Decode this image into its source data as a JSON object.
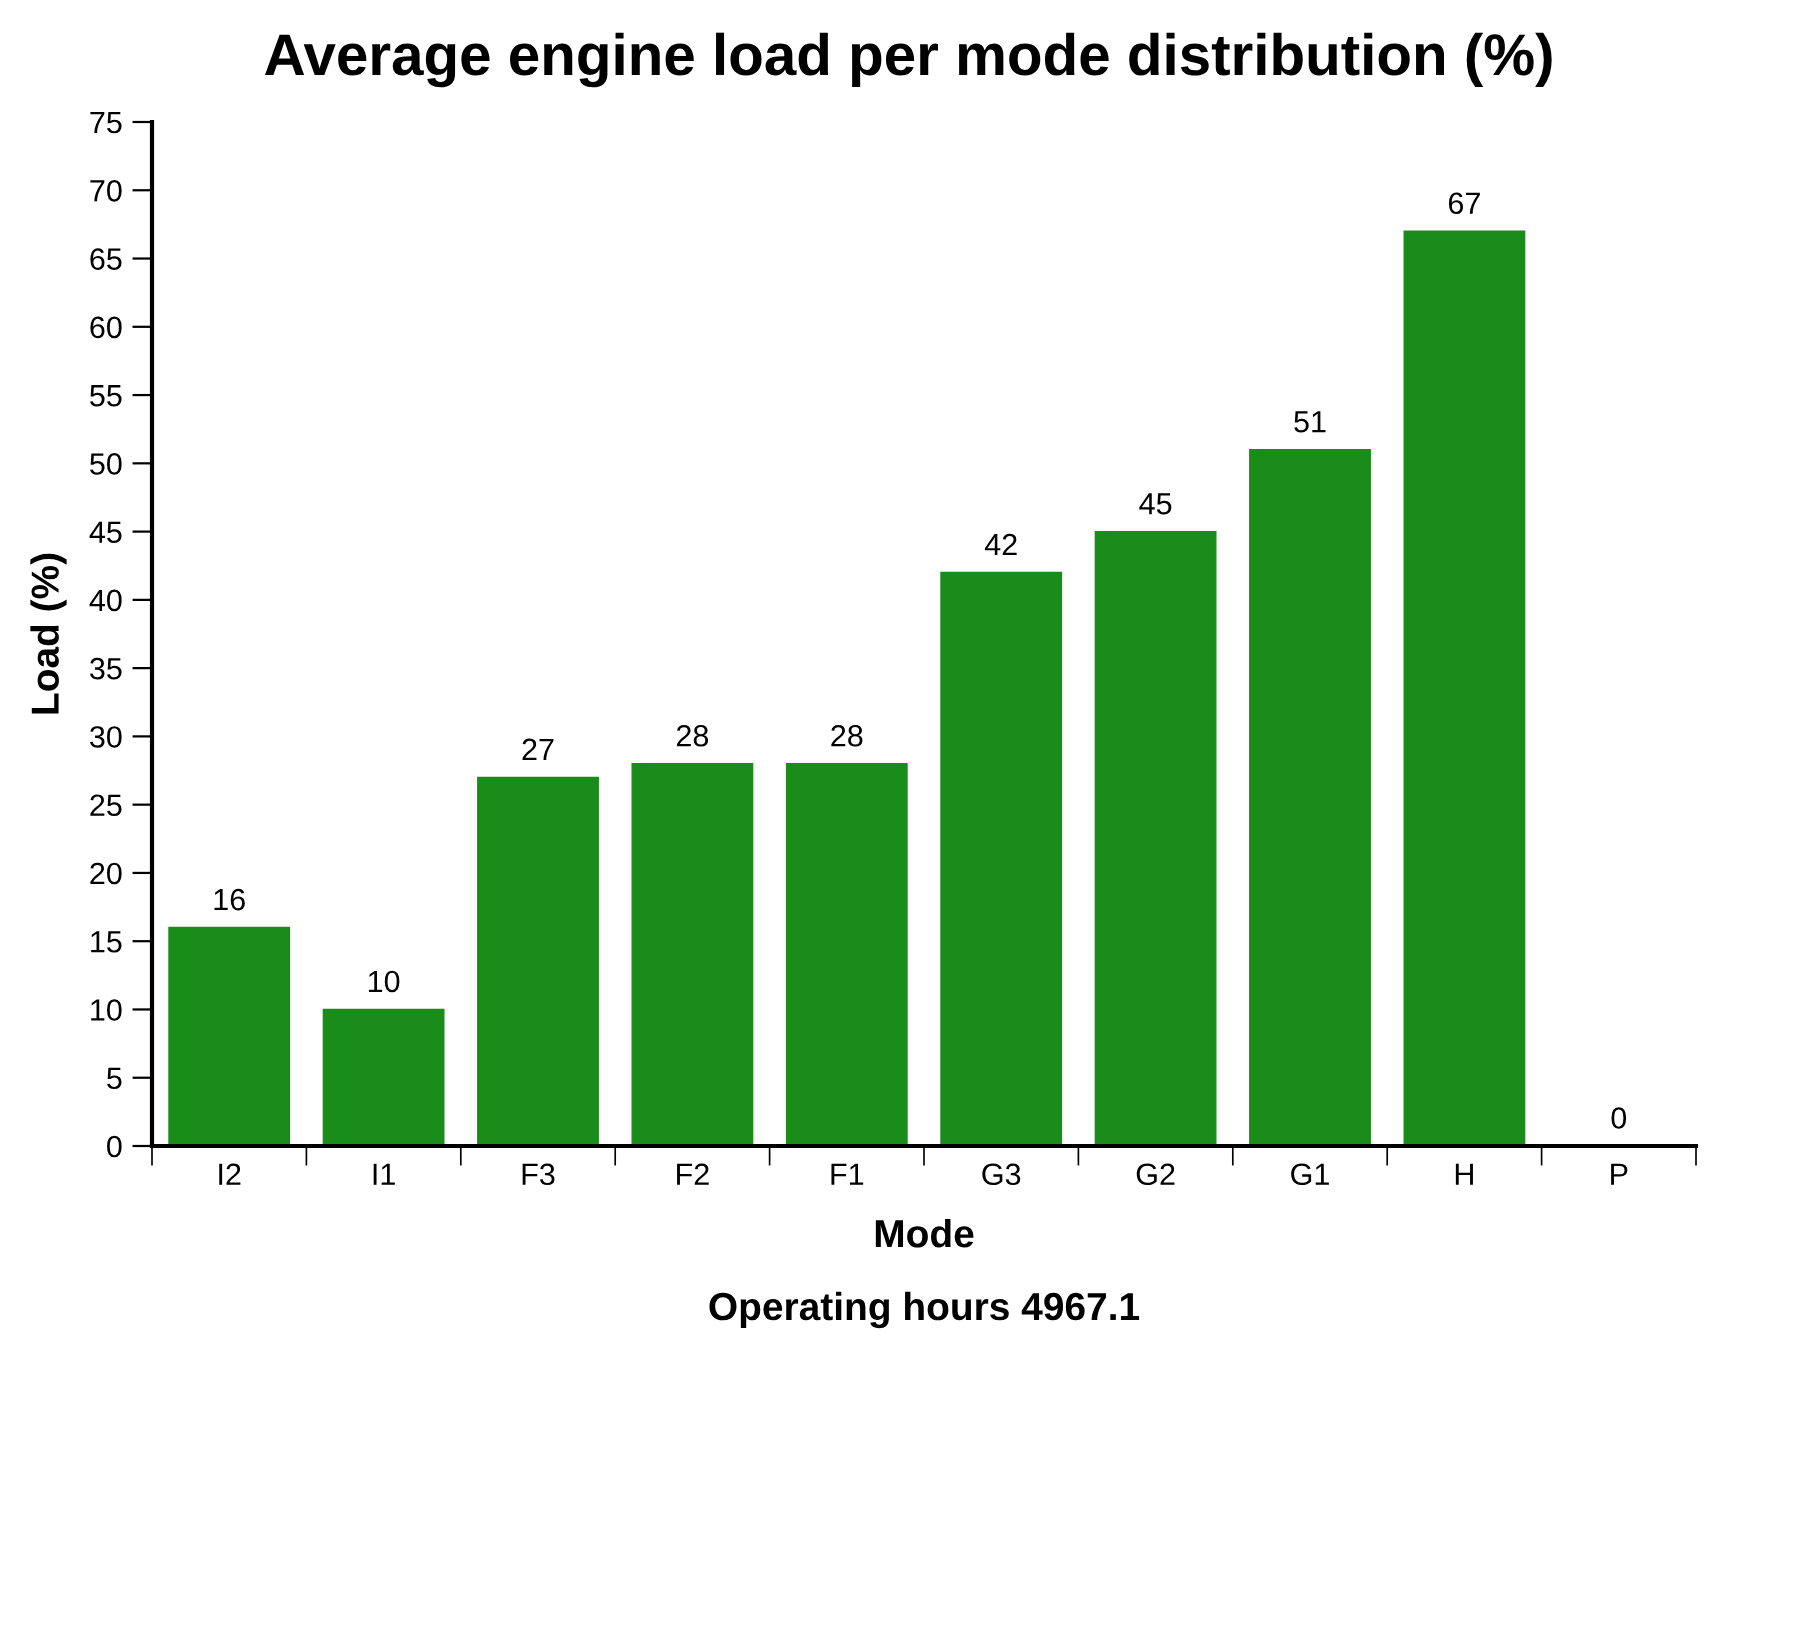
{
  "chart_data": {
    "type": "bar",
    "title": "Average engine load per mode distribution (%)",
    "xlabel": "Mode",
    "ylabel": "Load (%)",
    "categories": [
      "I2",
      "I1",
      "F3",
      "F2",
      "F1",
      "G3",
      "G2",
      "G1",
      "H",
      "P"
    ],
    "values": [
      16,
      10,
      27,
      28,
      28,
      42,
      45,
      51,
      67,
      0
    ],
    "color": "#1a8c1a",
    "ylim": [
      0,
      75
    ],
    "yticks": [
      0,
      5,
      10,
      15,
      20,
      25,
      30,
      35,
      40,
      45,
      50,
      55,
      60,
      65,
      70,
      75
    ],
    "grid": false,
    "data_labels": true,
    "annotations": [
      "Operating hours 4967.1"
    ]
  }
}
